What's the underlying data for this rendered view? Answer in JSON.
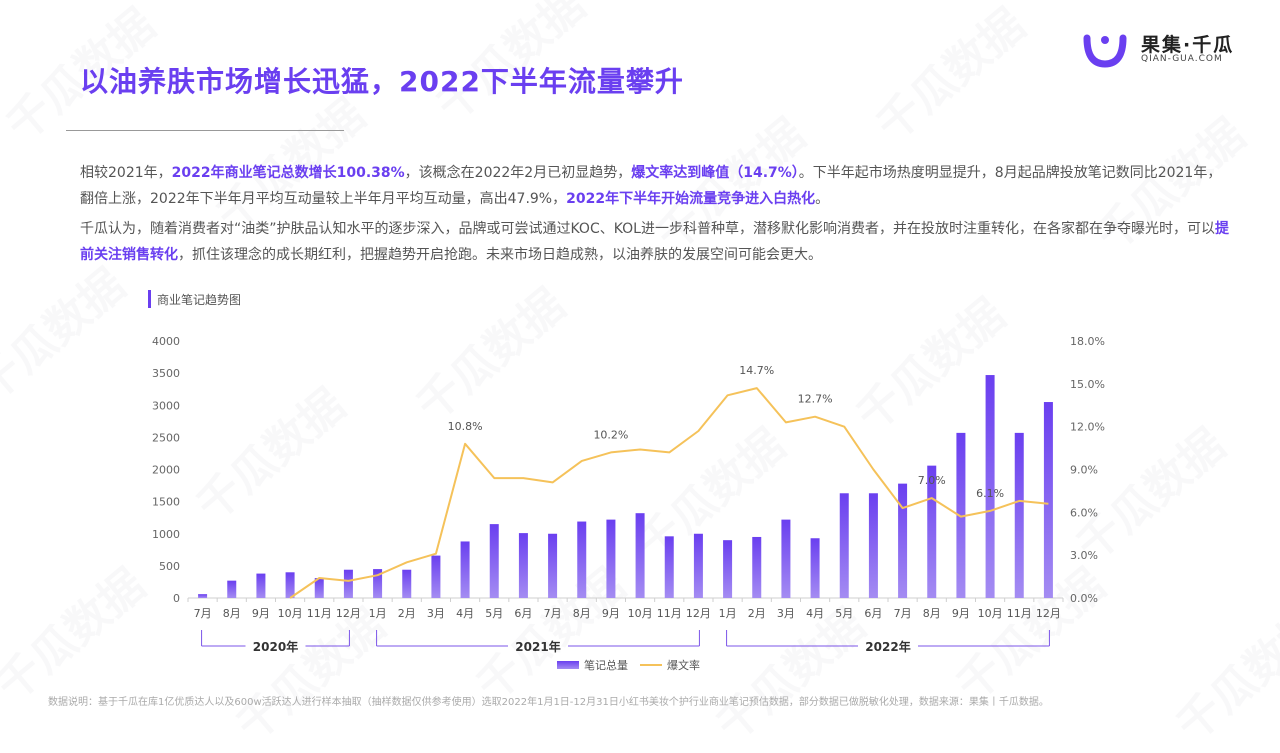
{
  "header": {
    "title": "以油养肤市场增长迅猛，2022下半年流量攀升",
    "logo_cn": "果集·千瓜",
    "logo_en": "QIAN-GUA.COM"
  },
  "paragraph1": [
    {
      "text": "相较2021年，",
      "hl": false
    },
    {
      "text": "2022年商业笔记总数增长100.38%",
      "hl": true
    },
    {
      "text": "，该概念在2022年2月已初显趋势，",
      "hl": false
    },
    {
      "text": "爆文率达到峰值（14.7%）",
      "hl": true
    },
    {
      "text": "。下半年起市场热度明显提升，8月起品牌投放笔记数同比2021年，翻倍上涨，2022年下半年月平均互动量较上半年月平均互动量，高出47.9%，",
      "hl": false
    },
    {
      "text": "2022年下半年开始流量竞争进入白热化",
      "hl": true
    },
    {
      "text": "。",
      "hl": false
    }
  ],
  "paragraph2": [
    {
      "text": "千瓜认为，随着消费者对“油类”护肤品认知水平的逐步深入，品牌或可尝试通过KOC、KOL进一步科普种草，潜移默化影响消费者，并在投放时注重转化，在各家都在争夺曝光时，可以",
      "hl": false
    },
    {
      "text": "提前关注销售转化",
      "hl": true
    },
    {
      "text": "，抓住该理念的成长期红利，把握趋势开启抢跑。未来市场日趋成熟，以油养肤的发展空间可能会更大。",
      "hl": false
    }
  ],
  "chart_title": "商业笔记趋势图",
  "chart_data": {
    "type": "bar",
    "categories": [
      "7月",
      "8月",
      "9月",
      "10月",
      "11月",
      "12月",
      "1月",
      "2月",
      "3月",
      "4月",
      "5月",
      "6月",
      "7月",
      "8月",
      "9月",
      "10月",
      "11月",
      "12月",
      "1月",
      "2月",
      "3月",
      "4月",
      "5月",
      "6月",
      "7月",
      "8月",
      "9月",
      "10月",
      "11月",
      "12月"
    ],
    "groups": [
      {
        "label": "2020年",
        "start": 0,
        "end": 5
      },
      {
        "label": "2021年",
        "start": 6,
        "end": 17
      },
      {
        "label": "2022年",
        "start": 18,
        "end": 29
      }
    ],
    "series": [
      {
        "name": "笔记总量",
        "type": "bar",
        "axis": "left",
        "color": "#7b55e8",
        "values": [
          60,
          270,
          380,
          400,
          310,
          440,
          450,
          440,
          660,
          880,
          1150,
          1010,
          1000,
          1190,
          1220,
          1320,
          960,
          1000,
          900,
          950,
          1220,
          930,
          1630,
          1630,
          1780,
          2060,
          2570,
          3470,
          2570,
          3050
        ]
      },
      {
        "name": "爆文率",
        "type": "line",
        "axis": "right",
        "color": "#f5c25a",
        "values": [
          null,
          null,
          null,
          0.0,
          1.4,
          1.2,
          1.6,
          2.5,
          3.1,
          10.8,
          8.4,
          8.4,
          8.1,
          9.6,
          10.2,
          10.4,
          10.2,
          11.7,
          14.2,
          14.7,
          12.3,
          12.7,
          12.0,
          9.0,
          6.3,
          7.0,
          5.7,
          6.1,
          6.8,
          6.6
        ]
      }
    ],
    "point_labels": [
      {
        "index": 9,
        "text": "10.8%"
      },
      {
        "index": 14,
        "text": "10.2%"
      },
      {
        "index": 19,
        "text": "14.7%"
      },
      {
        "index": 21,
        "text": "12.7%"
      },
      {
        "index": 25,
        "text": "7.0%"
      },
      {
        "index": 27,
        "text": "6.1%"
      }
    ],
    "left_axis": {
      "min": 0,
      "max": 4000,
      "ticks": [
        0,
        500,
        1000,
        1500,
        2000,
        2500,
        3000,
        3500,
        4000
      ]
    },
    "right_axis": {
      "min": 0,
      "max": 18,
      "ticks": [
        "0.0%",
        "3.0%",
        "6.0%",
        "9.0%",
        "12.0%",
        "15.0%",
        "18.0%"
      ]
    },
    "legend_position": "bottom",
    "grid": false
  },
  "footnote": "数据说明：基于千瓜在库1亿优质达人以及600w活跃达人进行样本抽取（抽样数据仅供参考使用）选取2022年1月1日-12月31日小红书美妆个护行业商业笔记预估数据，部分数据已做脱敏化处理，数据来源：果集丨千瓜数据。",
  "watermark": "千瓜数据"
}
